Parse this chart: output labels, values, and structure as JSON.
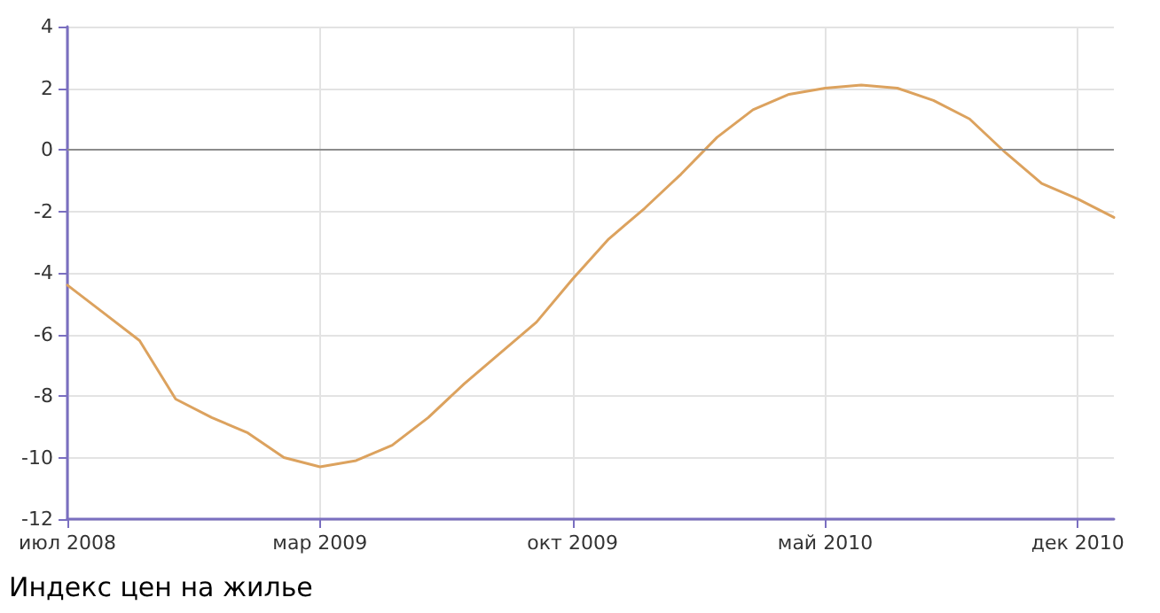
{
  "chart_data": {
    "type": "line",
    "title": "Индекс цен на жилье",
    "categories": [
      "июл 2008",
      null,
      null,
      null,
      null,
      null,
      null,
      "мар 2009",
      null,
      null,
      null,
      null,
      null,
      null,
      "окт 2009",
      null,
      null,
      null,
      null,
      null,
      null,
      "май 2010",
      null,
      null,
      null,
      null,
      null,
      null,
      "дек 2010",
      null
    ],
    "series": [
      {
        "color": "#dca25e",
        "values": [
          -4.4,
          -5.3,
          -6.2,
          -8.1,
          -8.7,
          -9.2,
          -10.0,
          -10.3,
          -10.1,
          -9.6,
          -8.7,
          -7.6,
          -6.6,
          -5.6,
          -4.2,
          -2.9,
          -1.9,
          -0.8,
          0.4,
          1.3,
          1.8,
          2.0,
          2.1,
          2.0,
          1.6,
          1.0,
          -0.1,
          -1.1,
          -1.6,
          -2.2
        ]
      }
    ],
    "ylim": [
      -12,
      4
    ],
    "yticks": [
      -12,
      -10,
      -8,
      -6,
      -4,
      -2,
      0,
      2,
      4
    ],
    "ref_lines": [
      {
        "axis": "y",
        "value": 0,
        "color": "#8c8c8c"
      }
    ],
    "grid": true,
    "marker": "none",
    "line_style": "solid"
  }
}
